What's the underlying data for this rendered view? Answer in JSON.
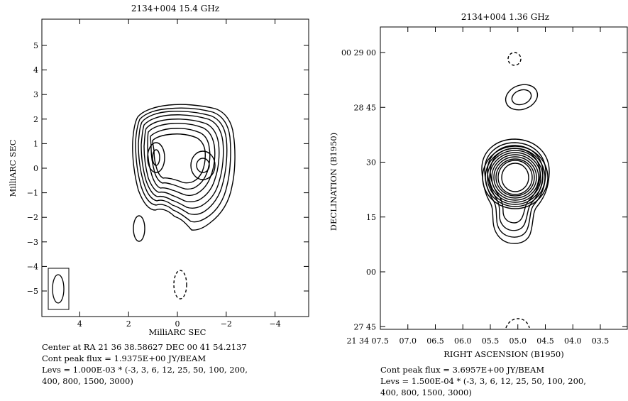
{
  "chart_data": [
    {
      "type": "contour",
      "title": "2134+004  15.4 GHz",
      "xlabel": "MilliARC SEC",
      "ylabel": "MilliARC SEC",
      "x_ticks": [
        4,
        2,
        0,
        -2,
        -4
      ],
      "x_tick_labels": [
        "4",
        "2",
        "0",
        "−2",
        "−4"
      ],
      "y_ticks": [
        5,
        4,
        3,
        2,
        1,
        0,
        -1,
        -2,
        -3,
        -4,
        -5
      ],
      "y_tick_labels": [
        "5",
        "4",
        "3",
        "2",
        "1",
        "0",
        "−1",
        "−2",
        "−3",
        "−4",
        "−5"
      ],
      "xlim": [
        5.4,
        -5.4
      ],
      "ylim": [
        -5.9,
        5.9
      ],
      "components": [
        {
          "x": 0.9,
          "y": 0.4
        },
        {
          "x": -1.1,
          "y": 0.1
        }
      ],
      "caption": [
        "Center at RA 21 36 38.58627  DEC 00 41 54.2137",
        "Cont peak flux =  1.9375E+00 JY/BEAM",
        "Levs = 1.000E-03 * (-3, 3, 6, 12, 25, 50, 100, 200,",
        "400, 800, 1500, 3000)"
      ]
    },
    {
      "type": "contour",
      "title": "2134+004  1.36 GHz",
      "xlabel": "RIGHT ASCENSION (B1950)",
      "ylabel": "DECLINATION (B1950)",
      "x_ticks": [
        7.5,
        7.0,
        6.5,
        6.0,
        5.5,
        5.0,
        4.5,
        4.0,
        3.5
      ],
      "x_tick_labels": [
        "21 34 07.5",
        "07.0",
        "06.5",
        "06.0",
        "05.5",
        "05.0",
        "04.5",
        "04.0",
        "03.5"
      ],
      "y_ticks": [
        60,
        45,
        30,
        15,
        0,
        -15
      ],
      "y_tick_labels": [
        "00 29 00",
        "28 45",
        "30",
        "15",
        "00",
        "27 45"
      ],
      "components": [
        {
          "x": 5.2,
          "y": 25
        }
      ],
      "caption": [
        "Cont peak flux =  3.6957E+00 JY/BEAM",
        "Levs = 1.500E-04 * (-3, 3, 6, 12, 25, 50, 100, 200,",
        "400, 800, 1500, 3000)"
      ]
    }
  ]
}
